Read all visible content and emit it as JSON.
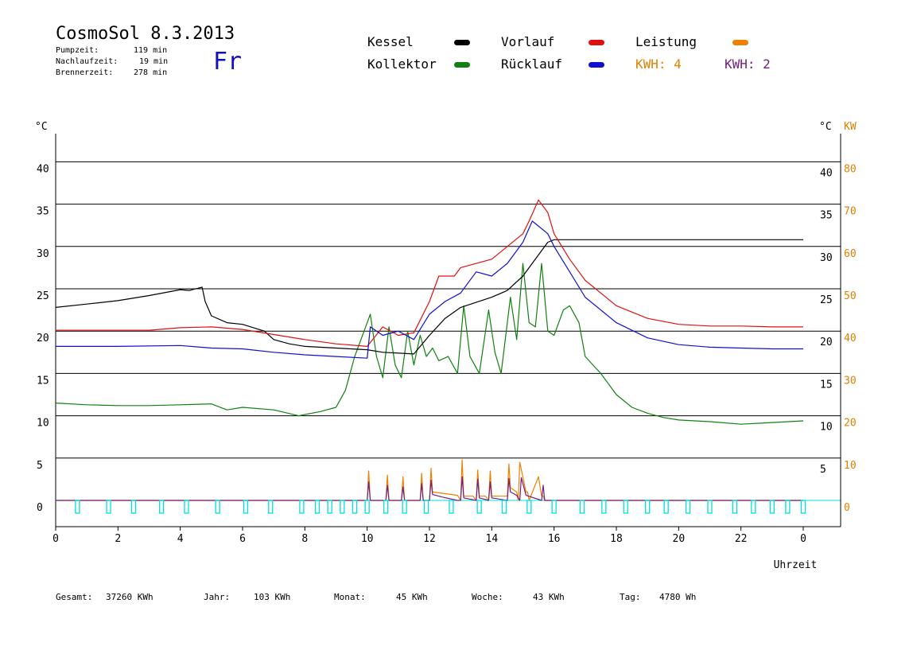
{
  "header": {
    "title": "CosmoSol 8.3.2013",
    "day": "Fr",
    "stats": [
      {
        "label": "Pumpzeit:",
        "value": "119 min"
      },
      {
        "label": "Nachlaufzeit:",
        "value": "19 min"
      },
      {
        "label": "Brennerzeit:",
        "value": "278 min"
      }
    ]
  },
  "legend": {
    "kessel": "Kessel",
    "vorlauf": "Vorlauf",
    "leistung": "Leistung",
    "kollektor": "Kollektor",
    "ruecklauf": "Rücklauf",
    "kwh1": "KWH: 4",
    "kwh2": "KWH: 2"
  },
  "footer": [
    {
      "label": "Gesamt:",
      "value": "37260 KWh"
    },
    {
      "label": "Jahr:",
      "value": "103 KWh"
    },
    {
      "label": "Monat:",
      "value": "45 KWh"
    },
    {
      "label": "Woche:",
      "value": "43 KWh"
    },
    {
      "label": "Tag:",
      "value": "4780 Wh"
    }
  ],
  "colors": {
    "kessel": "#000000",
    "vorlauf": "#e01010",
    "leistung": "#f08000",
    "kollektor": "#108010",
    "ruecklauf": "#1010d0",
    "kwh2": "#702080",
    "pump": "#00e0e0"
  },
  "chart_data": {
    "type": "line",
    "xlabel": "Uhrzeit",
    "ylabel_left": "°C",
    "ylabel_right": "°C",
    "ylabel_right2": "KW",
    "xlim": [
      0,
      24
    ],
    "ylim": [
      0,
      45
    ],
    "x_ticks": [
      "0",
      "2",
      "4",
      "6",
      "8",
      "10",
      "12",
      "14",
      "16",
      "18",
      "20",
      "22",
      "0"
    ],
    "y_ticks": [
      "0",
      "5",
      "10",
      "15",
      "20",
      "25",
      "30",
      "35",
      "40"
    ],
    "y_ticks_right": [
      "5",
      "10",
      "15",
      "20",
      "25",
      "30",
      "35",
      "40"
    ],
    "kw_ticks": [
      "0",
      "10",
      "20",
      "30",
      "40",
      "50",
      "60",
      "70",
      "80"
    ],
    "grid": "horizontal",
    "series": [
      {
        "name": "Kessel",
        "key": "kessel",
        "x": [
          0,
          1,
          2,
          3,
          4,
          4.3,
          4.7,
          4.8,
          5.0,
          5.5,
          6.0,
          6.7,
          7.0,
          7.5,
          8.0,
          9.0,
          10.0,
          10.5,
          11.5,
          12.0,
          12.5,
          13,
          14,
          14.5,
          15,
          15.5,
          15.8,
          16,
          17,
          18,
          19,
          20,
          21,
          22,
          23,
          24
        ],
        "y": [
          22.8,
          23.2,
          23.6,
          24.2,
          24.9,
          24.8,
          25.2,
          23.5,
          21.8,
          21.0,
          20.8,
          20.0,
          19.0,
          18.5,
          18.2,
          18.0,
          17.8,
          17.5,
          17.3,
          19.5,
          21.5,
          22.8,
          24.0,
          24.8,
          26.5,
          29.0,
          30.5,
          30.8,
          30.8,
          30.8,
          30.8,
          30.8,
          30.8,
          30.8,
          30.8,
          30.8
        ]
      },
      {
        "name": "Vorlauf",
        "key": "vorlauf",
        "x": [
          0,
          3,
          4.0,
          5.0,
          6,
          7,
          8,
          9,
          10,
          10.5,
          11,
          11.5,
          12,
          12.3,
          12.8,
          13,
          13.5,
          14,
          14.5,
          15,
          15.2,
          15.5,
          15.8,
          16,
          16.5,
          17,
          18,
          19,
          20,
          21,
          22,
          23,
          24
        ],
        "y": [
          20.1,
          20.1,
          20.4,
          20.5,
          20.2,
          19.6,
          19.0,
          18.5,
          18.2,
          20.5,
          19.5,
          19.8,
          23.5,
          26.5,
          26.5,
          27.5,
          28.0,
          28.5,
          30.0,
          31.5,
          33.0,
          35.5,
          34.0,
          31.5,
          28.5,
          26.0,
          23.0,
          21.5,
          20.8,
          20.6,
          20.6,
          20.5,
          20.5
        ]
      },
      {
        "name": "Rücklauf",
        "key": "ruecklauf",
        "x": [
          0,
          2,
          4,
          5,
          6,
          7,
          8,
          9,
          10,
          10.1,
          10.5,
          11,
          11.5,
          12,
          12.5,
          13,
          13.5,
          14,
          14.5,
          15,
          15.3,
          15.8,
          16,
          16.5,
          17,
          18,
          19,
          20,
          21,
          22,
          23,
          24
        ],
        "y": [
          18.2,
          18.2,
          18.3,
          18.0,
          17.9,
          17.5,
          17.2,
          17.0,
          16.8,
          20.5,
          19.5,
          20.0,
          19.0,
          22.0,
          23.5,
          24.5,
          27.0,
          26.5,
          28.0,
          30.5,
          33.0,
          31.5,
          30.0,
          27.0,
          24.0,
          21.0,
          19.2,
          18.4,
          18.1,
          18.0,
          17.9,
          17.9
        ]
      },
      {
        "name": "Kollektor",
        "key": "kollektor",
        "x": [
          0,
          1,
          2,
          3,
          4,
          5,
          5.5,
          6,
          7,
          7.8,
          8.5,
          9,
          9.3,
          9.6,
          9.9,
          10.1,
          10.3,
          10.5,
          10.7,
          10.9,
          11.1,
          11.3,
          11.5,
          11.7,
          11.9,
          12.1,
          12.3,
          12.6,
          12.9,
          13.1,
          13.3,
          13.6,
          13.9,
          14.1,
          14.3,
          14.6,
          14.8,
          15.0,
          15.2,
          15.4,
          15.6,
          15.8,
          16.0,
          16.3,
          16.5,
          16.8,
          17,
          17.5,
          18,
          18.5,
          19,
          19.5,
          20,
          21,
          22,
          23,
          24
        ],
        "y": [
          11.5,
          11.3,
          11.2,
          11.2,
          11.3,
          11.4,
          10.7,
          11.0,
          10.7,
          10.0,
          10.5,
          11.0,
          13.0,
          17.0,
          20.0,
          22.0,
          17.0,
          14.5,
          20.5,
          16.0,
          14.5,
          20.0,
          16.0,
          19.5,
          17.0,
          18.0,
          16.5,
          17.0,
          15.0,
          23.0,
          17.0,
          15.0,
          22.5,
          17.5,
          15.0,
          24.0,
          19.0,
          28.0,
          21.0,
          20.5,
          28.0,
          20.0,
          19.5,
          22.5,
          23.0,
          21.0,
          17.0,
          15.0,
          12.5,
          11.0,
          10.3,
          9.8,
          9.5,
          9.3,
          9.0,
          9.2,
          9.4
        ]
      },
      {
        "name": "Leistung",
        "key": "leistung",
        "x": [
          0,
          9.95,
          10.0,
          10.05,
          10.1,
          10.5,
          10.6,
          10.65,
          10.7,
          11.0,
          11.1,
          11.15,
          11.2,
          11.6,
          11.7,
          11.75,
          11.8,
          11.9,
          12.0,
          12.05,
          12.1,
          12.5,
          12.9,
          13.0,
          13.05,
          13.1,
          13.4,
          13.5,
          13.55,
          13.6,
          13.8,
          13.9,
          13.95,
          14.0,
          14.3,
          14.5,
          14.55,
          14.6,
          14.8,
          14.85,
          14.9,
          15.1,
          15.15,
          15.2,
          15.5,
          15.6,
          15.65,
          15.7,
          15.9,
          24
        ],
        "y": [
          0,
          0,
          0,
          3.5,
          0,
          0,
          0,
          3.0,
          0,
          0,
          0,
          2.8,
          0,
          0,
          0,
          3.2,
          0,
          0,
          0,
          3.8,
          1.0,
          0.8,
          0.6,
          0,
          4.8,
          0.5,
          0.5,
          0,
          3.6,
          0.5,
          0.5,
          0,
          3.5,
          0.5,
          0.5,
          0.5,
          4.3,
          1.5,
          1.0,
          0,
          4.5,
          1.0,
          1.0,
          0,
          2.8,
          0.5,
          0.5,
          0,
          0,
          0
        ]
      },
      {
        "name": "KWH: 2",
        "key": "kwh2",
        "x": [
          0,
          9.95,
          10.0,
          10.05,
          10.1,
          10.6,
          10.65,
          10.7,
          11.1,
          11.15,
          11.2,
          11.7,
          11.75,
          11.8,
          12.0,
          12.05,
          12.1,
          12.4,
          12.9,
          13.0,
          13.05,
          13.1,
          13.5,
          13.55,
          13.6,
          13.9,
          13.95,
          14.0,
          14.5,
          14.55,
          14.6,
          14.8,
          14.9,
          14.95,
          15.1,
          15.6,
          15.65,
          15.7,
          24
        ],
        "y": [
          0,
          0,
          0,
          2.2,
          0,
          0,
          1.8,
          0,
          0,
          1.6,
          0,
          0,
          2.0,
          0,
          0,
          2.4,
          0.7,
          0.4,
          0,
          0,
          2.8,
          0.3,
          0,
          2.5,
          0.3,
          0,
          2.2,
          0.3,
          0,
          2.6,
          1.0,
          0.6,
          0,
          2.7,
          0.6,
          0,
          1.8,
          0,
          0
        ]
      }
    ],
    "pump_markers": [
      0.7,
      1.7,
      2.5,
      3.4,
      4.2,
      5.2,
      6.1,
      6.9,
      7.9,
      8.4,
      8.8,
      9.2,
      9.6,
      10.0,
      10.6,
      11.2,
      11.9,
      12.7,
      13.6,
      14.4,
      15.2,
      16.0,
      16.9,
      17.6,
      18.3,
      19.0,
      19.6,
      20.3,
      21.0,
      21.8,
      22.4,
      23.0,
      23.5,
      24.0
    ]
  }
}
